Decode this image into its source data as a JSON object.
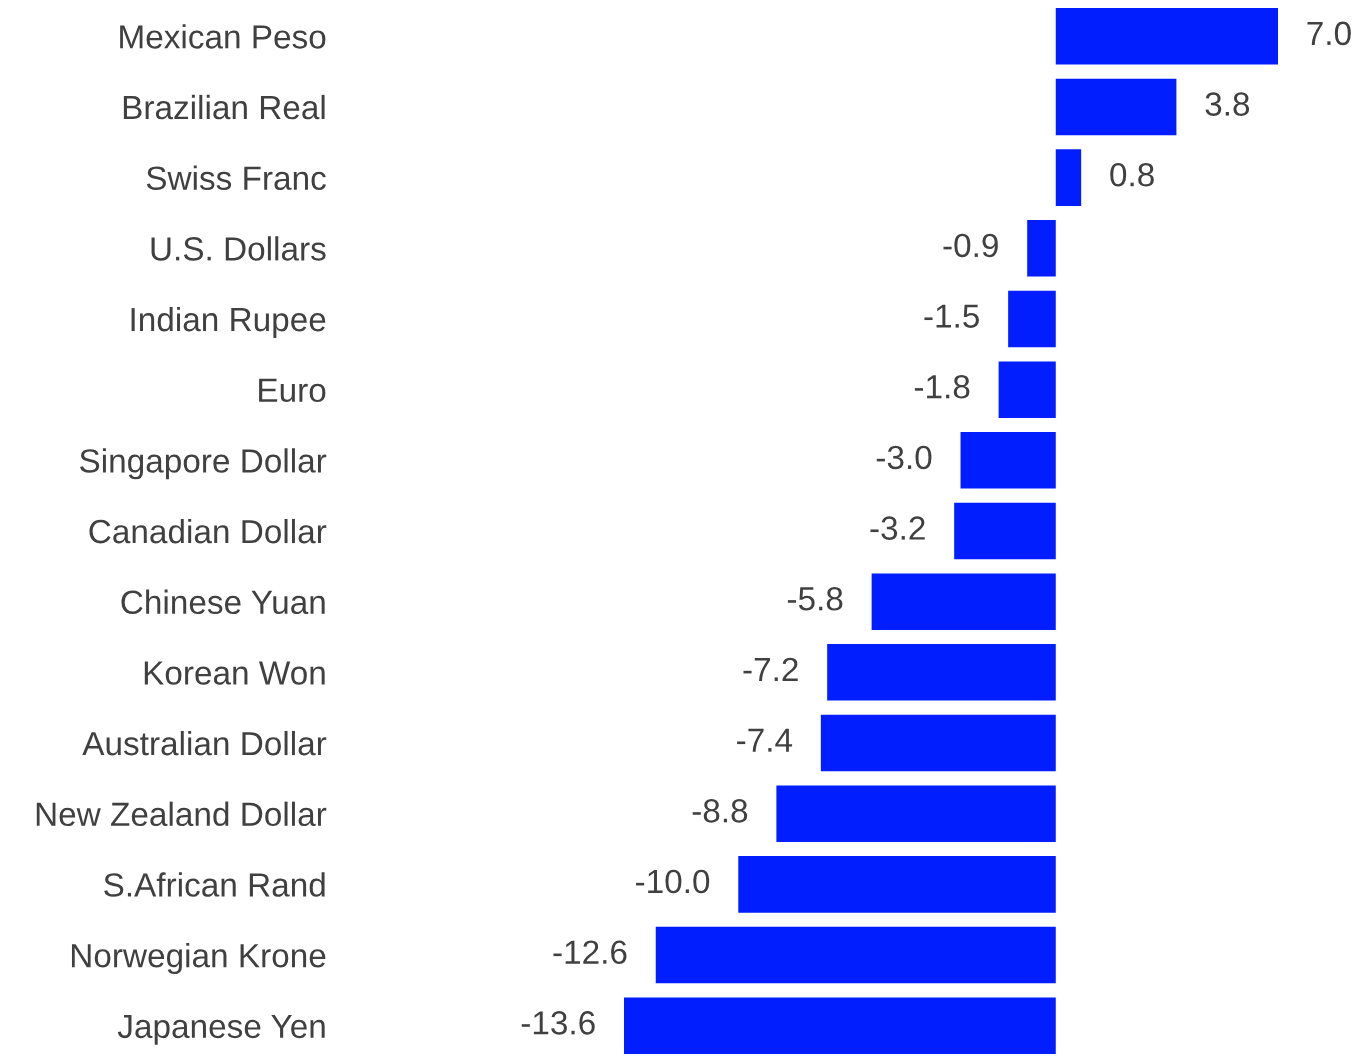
{
  "chart_data": {
    "type": "bar",
    "orientation": "horizontal",
    "categories": [
      "Mexican Peso",
      "Brazilian Real",
      "Swiss Franc",
      "U.S. Dollars",
      "Indian Rupee",
      "Euro",
      "Singapore Dollar",
      "Canadian Dollar",
      "Chinese Yuan",
      "Korean Won",
      "Australian Dollar",
      "New Zealand Dollar",
      "S.African Rand",
      "Norwegian Krone",
      "Japanese Yen"
    ],
    "values": [
      7.0,
      3.8,
      0.8,
      -0.9,
      -1.5,
      -1.8,
      -3.0,
      -3.2,
      -5.8,
      -7.2,
      -7.4,
      -8.8,
      -10.0,
      -12.6,
      -13.6
    ],
    "value_labels": [
      "7.0",
      "3.8",
      "0.8",
      "-0.9",
      "-1.5",
      "-1.8",
      "-3.0",
      "-3.2",
      "-5.8",
      "-7.2",
      "-7.4",
      "-8.8",
      "-10.0",
      "-12.6",
      "-13.6"
    ],
    "color": "#001eff",
    "grid": false,
    "legend": false
  }
}
